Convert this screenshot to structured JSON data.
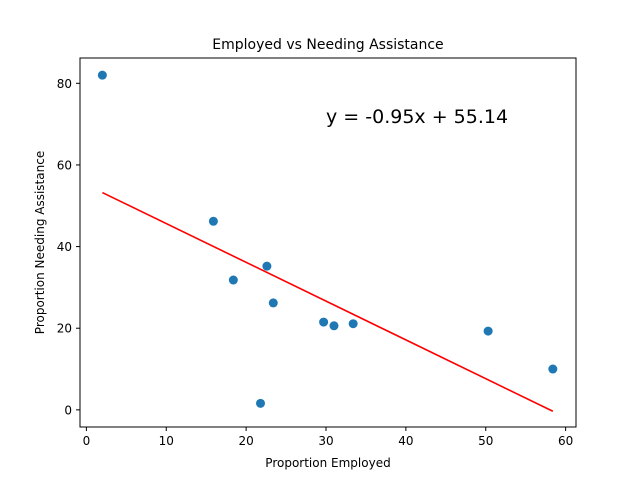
{
  "chart_data": {
    "type": "scatter",
    "title": "Employed vs Needing Assistance",
    "xlabel": "Proportion Employed",
    "ylabel": "Proportion Needing Assistance",
    "xlim": [
      -0.8,
      61.3
    ],
    "ylim": [
      -4.2,
      86.2
    ],
    "xticks": [
      0,
      10,
      20,
      30,
      40,
      50,
      60
    ],
    "yticks": [
      0,
      20,
      40,
      60,
      80
    ],
    "grid": false,
    "series": [
      {
        "type": "scatter",
        "color": "#1f77b4",
        "points": [
          {
            "x": 2.0,
            "y": 82.0
          },
          {
            "x": 15.9,
            "y": 46.2
          },
          {
            "x": 18.4,
            "y": 31.8
          },
          {
            "x": 21.8,
            "y": 1.6
          },
          {
            "x": 22.6,
            "y": 35.2
          },
          {
            "x": 23.4,
            "y": 26.2
          },
          {
            "x": 29.7,
            "y": 21.5
          },
          {
            "x": 31.0,
            "y": 20.6
          },
          {
            "x": 33.4,
            "y": 21.1
          },
          {
            "x": 50.3,
            "y": 19.3
          },
          {
            "x": 58.4,
            "y": 10.0
          }
        ]
      },
      {
        "type": "line",
        "color": "#ff0000",
        "slope": -0.95,
        "intercept": 55.14,
        "x_range": [
          2.0,
          58.4
        ]
      }
    ],
    "annotations": [
      {
        "text": "y = -0.95x + 55.14",
        "x": 30.0,
        "y": 70.0,
        "color": "#ff0000"
      }
    ]
  }
}
